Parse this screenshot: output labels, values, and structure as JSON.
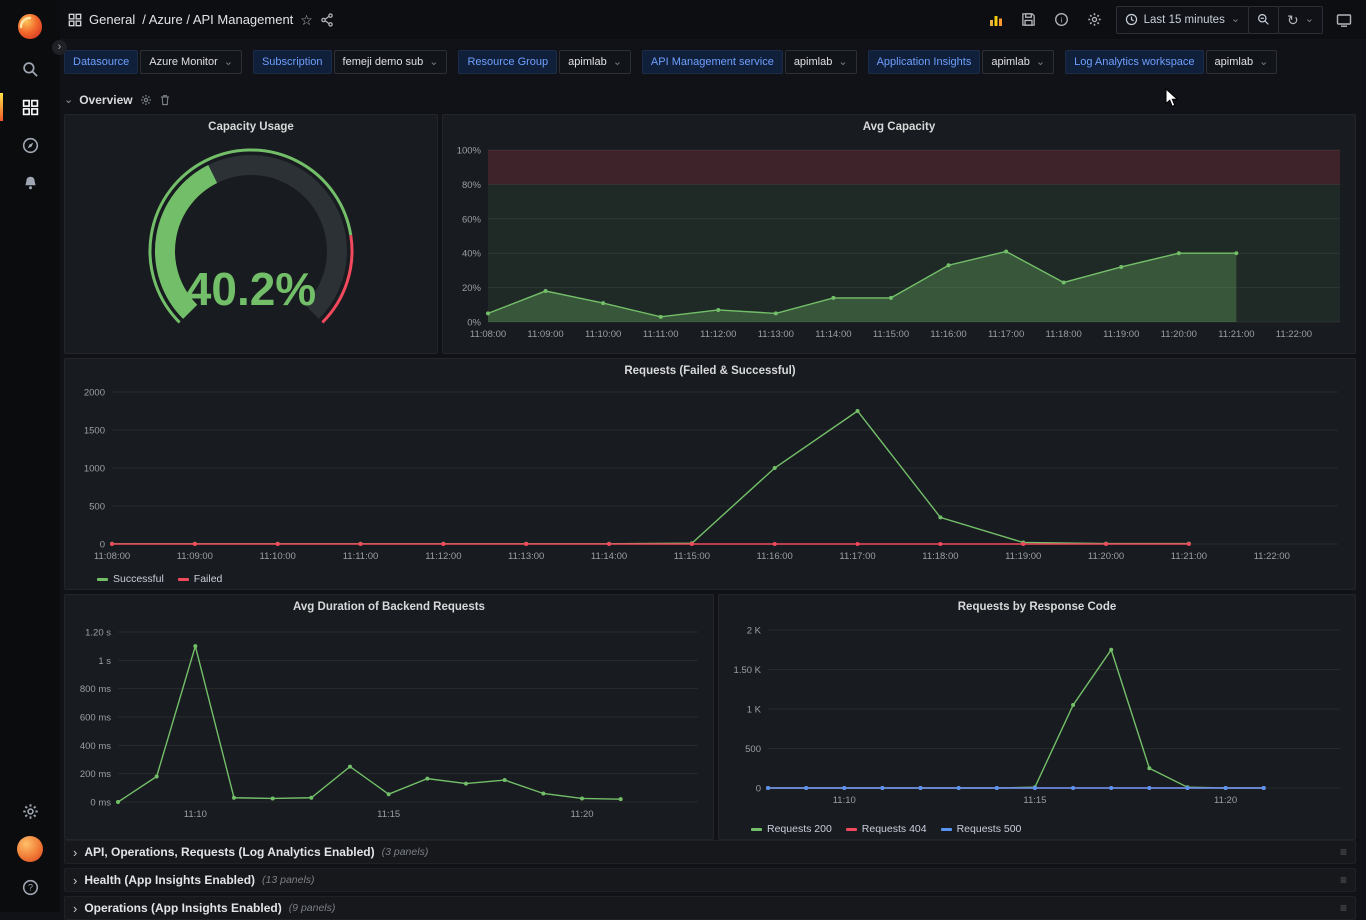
{
  "header": {
    "breadcrumb_folder": "General",
    "breadcrumb_path": "/ Azure / API Management",
    "time_picker": "Last 15 minutes"
  },
  "icons": {
    "star": "☆",
    "caret_down": "⌄",
    "chevron_right": "›",
    "chevron_down": "⌄",
    "refresh": "↻",
    "drag_handle": "≡"
  },
  "filters": [
    {
      "label": "Datasource",
      "value": "Azure Monitor"
    },
    {
      "label": "Subscription",
      "value": "femeji demo sub"
    },
    {
      "label": "Resource Group",
      "value": "apimlab"
    },
    {
      "label": "API Management service",
      "value": "apimlab"
    },
    {
      "label": "Application Insights",
      "value": "apimlab"
    },
    {
      "label": "Log Analytics workspace",
      "value": "apimlab"
    }
  ],
  "rows": {
    "overview": "Overview",
    "collapsed": [
      {
        "title": "API, Operations, Requests (Log Analytics Enabled)",
        "count": "(3 panels)"
      },
      {
        "title": "Health (App Insights Enabled)",
        "count": "(13 panels)"
      },
      {
        "title": "Operations (App Insights Enabled)",
        "count": "(9 panels)"
      }
    ]
  },
  "chart_data": [
    {
      "type": "gauge",
      "title": "Capacity Usage",
      "value": 40.2,
      "display": "40.2%",
      "min": 0,
      "max": 100,
      "value_color": "#73bf69",
      "thresholds": [
        {
          "from": 0,
          "to": 80,
          "color": "#73bf69"
        },
        {
          "from": 80,
          "to": 100,
          "color": "#f2495c"
        }
      ]
    },
    {
      "type": "area",
      "title": "Avg Capacity",
      "ylim": [
        0,
        100
      ],
      "yticks": [
        {
          "v": 0,
          "label": "0%"
        },
        {
          "v": 20,
          "label": "20%"
        },
        {
          "v": 40,
          "label": "40%"
        },
        {
          "v": 60,
          "label": "60%"
        },
        {
          "v": 80,
          "label": "80%"
        },
        {
          "v": 100,
          "label": "100%"
        }
      ],
      "xticks": [
        {
          "v": 0,
          "label": "11:08:00"
        },
        {
          "v": 1,
          "label": "11:09:00"
        },
        {
          "v": 2,
          "label": "11:10:00"
        },
        {
          "v": 3,
          "label": "11:11:00"
        },
        {
          "v": 4,
          "label": "11:12:00"
        },
        {
          "v": 5,
          "label": "11:13:00"
        },
        {
          "v": 6,
          "label": "11:14:00"
        },
        {
          "v": 7,
          "label": "11:15:00"
        },
        {
          "v": 8,
          "label": "11:16:00"
        },
        {
          "v": 9,
          "label": "11:17:00"
        },
        {
          "v": 10,
          "label": "11:18:00"
        },
        {
          "v": 11,
          "label": "11:19:00"
        },
        {
          "v": 12,
          "label": "11:20:00"
        },
        {
          "v": 13,
          "label": "11:21:00"
        },
        {
          "v": 14,
          "label": "11:22:00"
        }
      ],
      "bands": [
        {
          "from": 80,
          "to": 100,
          "color": "rgba(242,73,92,0.18)"
        },
        {
          "from": 0,
          "to": 80,
          "color": "rgba(115,191,105,0.09)"
        }
      ],
      "series": [
        {
          "name": "Avg Capacity",
          "color": "#73bf69",
          "fill": "rgba(115,191,105,0.30)",
          "values": [
            5,
            18,
            11,
            3,
            7,
            5,
            14,
            14,
            33,
            41,
            23,
            32,
            40,
            40
          ]
        }
      ]
    },
    {
      "type": "line",
      "title": "Requests (Failed & Successful)",
      "ylim": [
        0,
        2000
      ],
      "yticks": [
        {
          "v": 0,
          "label": "0"
        },
        {
          "v": 500,
          "label": "500"
        },
        {
          "v": 1000,
          "label": "1000"
        },
        {
          "v": 1500,
          "label": "1500"
        },
        {
          "v": 2000,
          "label": "2000"
        }
      ],
      "xticks": [
        {
          "v": 0,
          "label": "11:08:00"
        },
        {
          "v": 1,
          "label": "11:09:00"
        },
        {
          "v": 2,
          "label": "11:10:00"
        },
        {
          "v": 3,
          "label": "11:11:00"
        },
        {
          "v": 4,
          "label": "11:12:00"
        },
        {
          "v": 5,
          "label": "11:13:00"
        },
        {
          "v": 6,
          "label": "11:14:00"
        },
        {
          "v": 7,
          "label": "11:15:00"
        },
        {
          "v": 8,
          "label": "11:16:00"
        },
        {
          "v": 9,
          "label": "11:17:00"
        },
        {
          "v": 10,
          "label": "11:18:00"
        },
        {
          "v": 11,
          "label": "11:19:00"
        },
        {
          "v": 12,
          "label": "11:20:00"
        },
        {
          "v": 13,
          "label": "11:21:00"
        },
        {
          "v": 14,
          "label": "11:22:00"
        }
      ],
      "series": [
        {
          "name": "Successful",
          "color": "#73bf69",
          "values": [
            3,
            3,
            3,
            3,
            3,
            3,
            3,
            10,
            1000,
            1750,
            350,
            20,
            5,
            5
          ]
        },
        {
          "name": "Failed",
          "color": "#f2495c",
          "values": [
            0,
            0,
            0,
            0,
            0,
            0,
            0,
            0,
            0,
            0,
            0,
            0,
            0,
            0
          ]
        }
      ]
    },
    {
      "type": "line",
      "title": "Avg Duration of Backend Requests",
      "ylim": [
        0,
        1200
      ],
      "yticks": [
        {
          "v": 0,
          "label": "0 ms"
        },
        {
          "v": 200,
          "label": "200 ms"
        },
        {
          "v": 400,
          "label": "400 ms"
        },
        {
          "v": 600,
          "label": "600 ms"
        },
        {
          "v": 800,
          "label": "800 ms"
        },
        {
          "v": 1000,
          "label": "1 s"
        },
        {
          "v": 1200,
          "label": "1.20 s"
        }
      ],
      "xticks": [
        {
          "v": 2,
          "label": "11:10"
        },
        {
          "v": 7,
          "label": "11:15"
        },
        {
          "v": 12,
          "label": "11:20"
        }
      ],
      "series": [
        {
          "name": "Avg Duration",
          "color": "#73bf69",
          "values": [
            0,
            180,
            1100,
            30,
            25,
            30,
            250,
            55,
            165,
            130,
            155,
            60,
            25,
            20
          ]
        }
      ]
    },
    {
      "type": "line",
      "title": "Requests by Response Code",
      "ylim": [
        0,
        2000
      ],
      "yticks": [
        {
          "v": 0,
          "label": "0"
        },
        {
          "v": 500,
          "label": "500"
        },
        {
          "v": 1000,
          "label": "1 K"
        },
        {
          "v": 1500,
          "label": "1.50 K"
        },
        {
          "v": 2000,
          "label": "2 K"
        }
      ],
      "xticks": [
        {
          "v": 2,
          "label": "11:10"
        },
        {
          "v": 7,
          "label": "11:15"
        },
        {
          "v": 12,
          "label": "11:20"
        }
      ],
      "series": [
        {
          "name": "Requests 200",
          "color": "#73bf69",
          "values": [
            0,
            0,
            0,
            0,
            0,
            0,
            0,
            10,
            1050,
            1750,
            250,
            10,
            0,
            0
          ]
        },
        {
          "name": "Requests 404",
          "color": "#f2495c",
          "values": [
            0,
            0,
            0,
            0,
            0,
            0,
            0,
            0,
            0,
            0,
            0,
            0,
            0,
            0
          ]
        },
        {
          "name": "Requests 500",
          "color": "#5794f2",
          "values": [
            0,
            0,
            0,
            0,
            0,
            0,
            0,
            0,
            0,
            0,
            0,
            0,
            0,
            0
          ]
        }
      ]
    }
  ]
}
